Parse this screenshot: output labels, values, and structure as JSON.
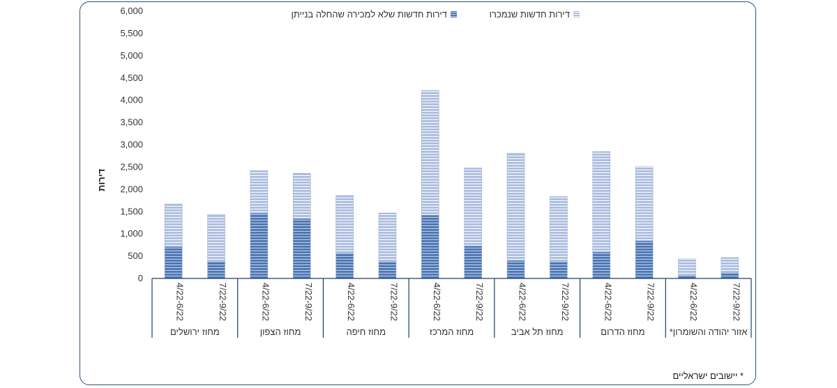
{
  "chart_data": {
    "type": "bar",
    "stacked": true,
    "ylabel": "דירות",
    "xlabel": "",
    "ylim": [
      0,
      6000
    ],
    "yticks": [
      "6,000",
      "5,500",
      "5,000",
      "4,500",
      "4,000",
      "3,500",
      "3,000",
      "2,500",
      "2,000",
      "1,500",
      "1,000",
      "500",
      "0"
    ],
    "ytick_values": [
      6000,
      5500,
      5000,
      4500,
      4000,
      3500,
      3000,
      2500,
      2000,
      1500,
      1000,
      500,
      0
    ],
    "grid": false,
    "legend_position": "top",
    "categories": [
      "4/22-6/22",
      "7/22-9/22",
      "4/22-6/22",
      "7/22-9/22",
      "4/22-6/22",
      "7/22-9/22",
      "4/22-6/22",
      "7/22-9/22",
      "4/22-6/22",
      "7/22-9/22",
      "4/22-6/22",
      "7/22-9/22",
      "4/22-6/22",
      "7/22-9/22"
    ],
    "groups": [
      {
        "label": "מחוז ירושלים",
        "span": 2
      },
      {
        "label": "מחוז הצפון",
        "span": 2
      },
      {
        "label": "מחוז חיפה",
        "span": 2
      },
      {
        "label": "מחוז המרכז",
        "span": 2
      },
      {
        "label": "מחוז תל אביב",
        "span": 2
      },
      {
        "label": "מחוז הדרום",
        "span": 2
      },
      {
        "label": "אזור יהודה והשומרון*",
        "span": 2
      }
    ],
    "series": [
      {
        "name": "דירות חדשות שלא למכירה שהחלה בנייתן",
        "values": [
          710,
          370,
          1460,
          1340,
          570,
          380,
          1420,
          730,
          400,
          380,
          590,
          840,
          60,
          130
        ]
      },
      {
        "name": "דירות חדשות שנמכרו",
        "values": [
          960,
          1060,
          960,
          1020,
          1290,
          1090,
          2800,
          1750,
          2410,
          1460,
          2260,
          1670,
          380,
          340
        ]
      }
    ],
    "colors": {
      "series_0": "#4f78b4",
      "series_1": "#aebfe0",
      "axis": "#1f3c66"
    }
  },
  "footnote": "* יישובים ישראליים"
}
